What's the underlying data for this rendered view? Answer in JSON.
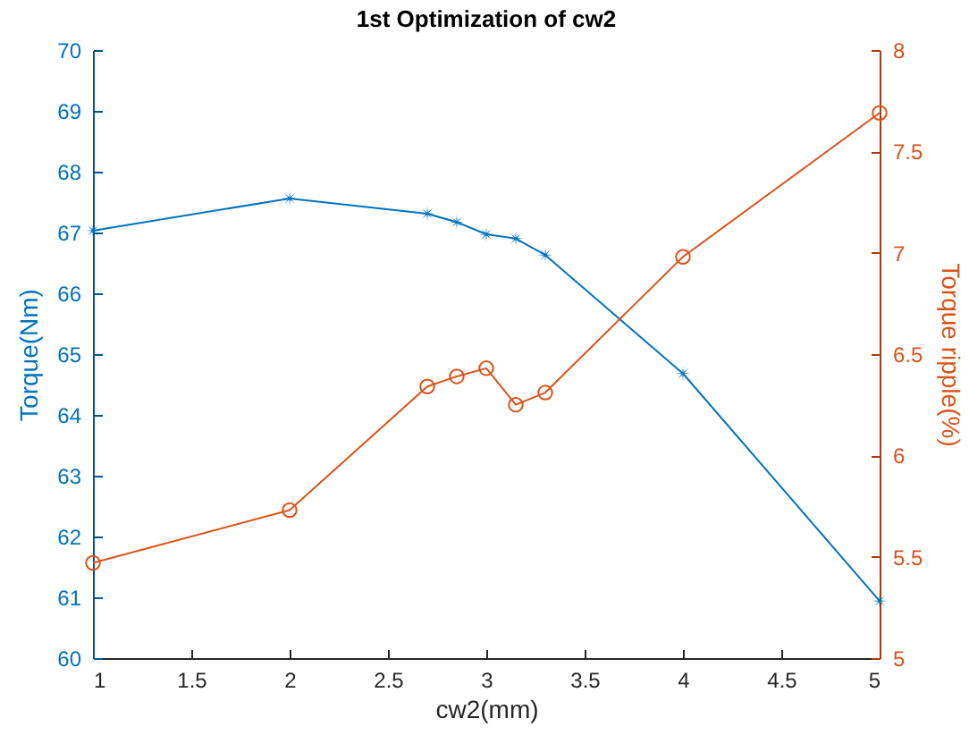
{
  "chart_data": {
    "type": "line",
    "title": "1st Optimization of cw2",
    "xlabel": "cw2(mm)",
    "ylabel": "Torque(Nm)",
    "y2label": "Torque ripple(%)",
    "x": [
      1,
      2,
      2.7,
      2.85,
      3,
      3.15,
      3.3,
      4,
      5
    ],
    "series": [
      {
        "color": "#0072bd",
        "marker": "star",
        "values": [
          67.03,
          67.56,
          67.31,
          67.17,
          66.97,
          66.9,
          66.63,
          64.68,
          60.94
        ]
      },
      {
        "color": "#d95319",
        "marker": "circle",
        "axis": "y2",
        "values": [
          5.47,
          5.73,
          6.34,
          6.39,
          6.43,
          6.25,
          6.31,
          6.98,
          7.69
        ]
      }
    ],
    "xlim": [
      1,
      5
    ],
    "xticks": [
      1,
      1.5,
      2,
      2.5,
      3,
      3.5,
      4,
      4.5,
      5
    ],
    "ylim": [
      60,
      70
    ],
    "yticks": [
      60,
      61,
      62,
      63,
      64,
      65,
      66,
      67,
      68,
      69,
      70
    ],
    "y2lim": [
      5,
      8
    ],
    "y2ticks": [
      5,
      5.5,
      6,
      6.5,
      7,
      7.5,
      8
    ],
    "grid": false,
    "line_style": "solid"
  }
}
